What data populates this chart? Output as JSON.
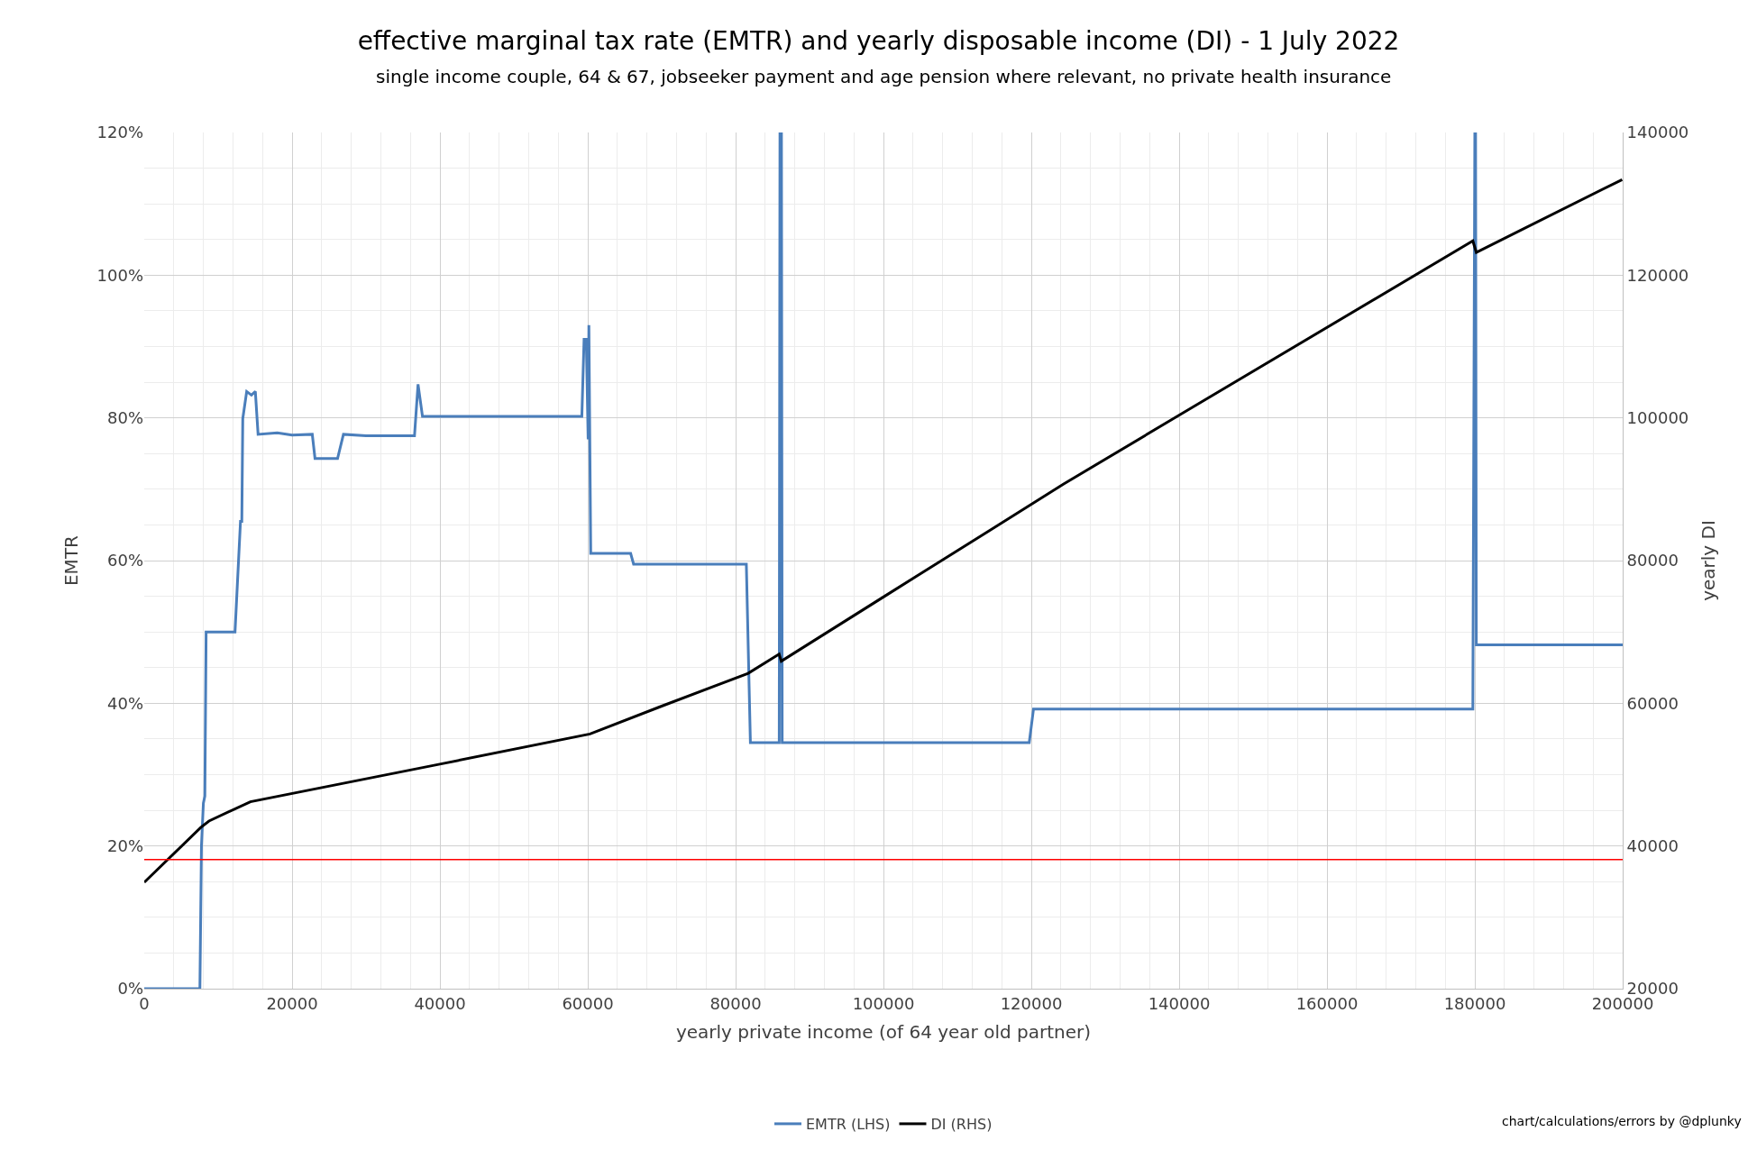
{
  "chart_data": {
    "type": "line",
    "title": "effective marginal tax rate (EMTR) and yearly disposable income (DI) - 1 July 2022",
    "subtitle": "single income couple, 64 & 67, jobseeker payment and age pension where relevant, no private health insurance",
    "xlabel": "yearly private income (of 64 year old partner)",
    "ylabel": "EMTR",
    "y2label": "yearly DI",
    "annotations": [
      "chart/calculations/errors by @dplunky"
    ],
    "series": [
      {
        "name": "EMTR (LHS)",
        "color": "#4a7ebb",
        "axis": "y",
        "x": [
          0,
          7530,
          7740,
          8000,
          8200,
          8370,
          12280,
          13020,
          13200,
          13330,
          13860,
          14500,
          15030,
          15400,
          18000,
          20000,
          22730,
          23100,
          26150,
          26950,
          30000,
          36560,
          37040,
          37640,
          59200,
          59500,
          59800,
          60050,
          60150,
          60400,
          65800,
          66200,
          81450,
          82000,
          85900,
          86000,
          86200,
          86300,
          119720,
          120300,
          179730,
          180000,
          180100,
          180200,
          200000
        ],
        "values": [
          0,
          0,
          20,
          26,
          27,
          50,
          50,
          65.5,
          65.5,
          79.9,
          83.7,
          83.2,
          83.7,
          77.7,
          77.9,
          77.6,
          77.7,
          74.3,
          74.3,
          77.7,
          77.5,
          77.5,
          84.7,
          80.2,
          80.2,
          91,
          91,
          77,
          93,
          61,
          61,
          59.5,
          59.5,
          34.5,
          34.5,
          120,
          120,
          34.5,
          34.5,
          39.2,
          39.2,
          120,
          120,
          48.2,
          48.2
        ]
      },
      {
        "name": "DI (RHS)",
        "color": "#000000",
        "axis": "y2",
        "x": [
          0,
          7650,
          8760,
          14360,
          40140,
          60300,
          70000,
          81700,
          85890,
          86180,
          100000,
          114630,
          124330,
          139880,
          179730,
          180200,
          199930
        ],
        "values": [
          34900,
          42600,
          43500,
          46200,
          51500,
          55700,
          59600,
          64200,
          66900,
          65900,
          74900,
          84400,
          90700,
          100300,
          124800,
          123200,
          133400
        ]
      }
    ],
    "xlim": [
      0,
      200000
    ],
    "xticks": [
      0,
      20000,
      40000,
      60000,
      80000,
      100000,
      120000,
      140000,
      160000,
      180000,
      200000
    ],
    "ylim": [
      0,
      120
    ],
    "yticks": [
      {
        "value": 0,
        "label": "0%"
      },
      {
        "value": 20,
        "label": "20%"
      },
      {
        "value": 40,
        "label": "40%"
      },
      {
        "value": 60,
        "label": "60%"
      },
      {
        "value": 80,
        "label": "80%"
      },
      {
        "value": 100,
        "label": "100%"
      },
      {
        "value": 120,
        "label": "120%"
      }
    ],
    "y2lim": [
      20000,
      140000
    ],
    "y2ticks": [
      20000,
      40000,
      60000,
      80000,
      100000,
      120000,
      140000
    ],
    "ref_lines": [
      {
        "axis": "y",
        "value": 18.1,
        "color": "#ff0000"
      }
    ],
    "grid": true,
    "legend": "bottom",
    "line_style": "solid",
    "marker": "none"
  }
}
